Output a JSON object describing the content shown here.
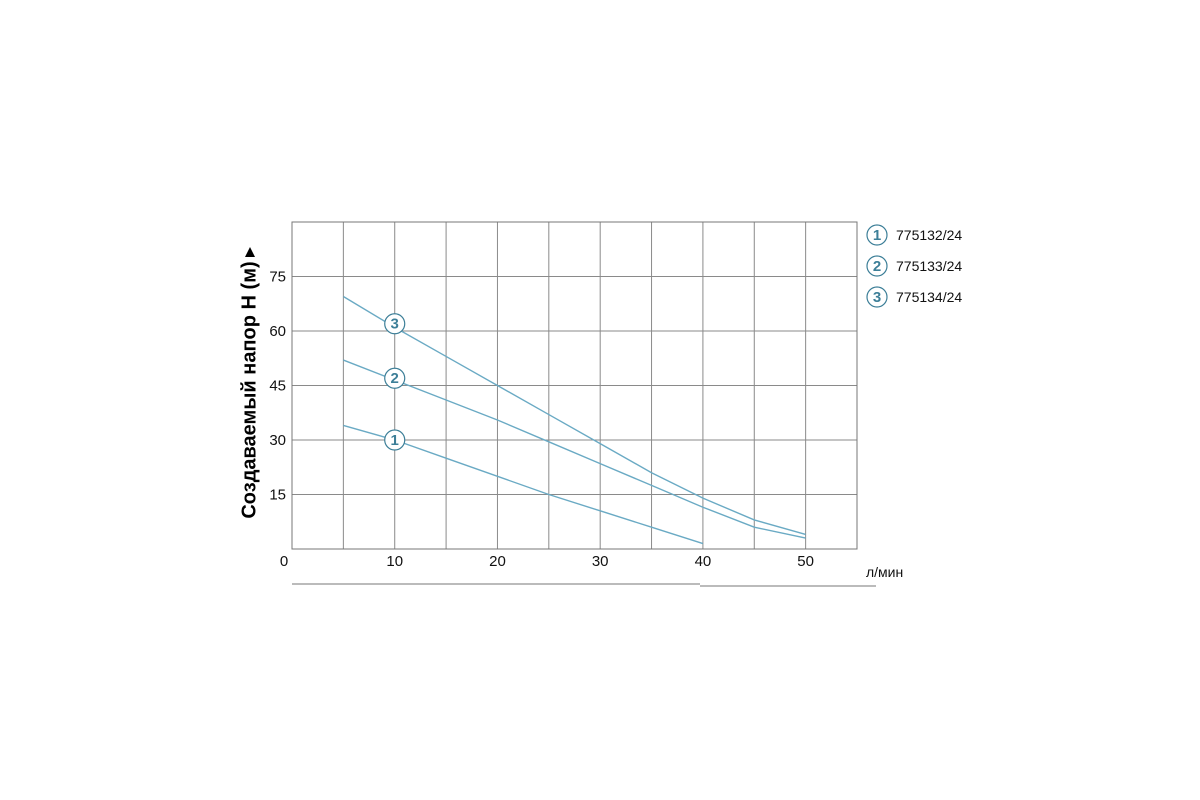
{
  "chart_data": {
    "type": "line",
    "ylabel": "Создаваемый напор H (м)",
    "xunit": "л/мин",
    "xlim": [
      0,
      55
    ],
    "ylim": [
      0,
      90
    ],
    "x_ticks": [
      "0",
      "10",
      "20",
      "30",
      "40",
      "50"
    ],
    "y_ticks": [
      "15",
      "30",
      "45",
      "60",
      "75"
    ],
    "grid": true,
    "legend_position": "right",
    "line_color": "#6aaac4",
    "marker_color": "#3d7f98",
    "series": [
      {
        "name": "775132/24",
        "marker": "1",
        "marker_at": [
          10,
          30
        ],
        "x": [
          5,
          10,
          15,
          20,
          25,
          30,
          35,
          40
        ],
        "y": [
          34,
          30,
          25,
          20,
          15,
          10.5,
          6,
          1.5
        ]
      },
      {
        "name": "775133/24",
        "marker": "2",
        "marker_at": [
          10,
          47
        ],
        "x": [
          5,
          10,
          15,
          20,
          25,
          30,
          35,
          40,
          45,
          50
        ],
        "y": [
          52,
          46.5,
          41,
          35.5,
          29.5,
          23.5,
          17.5,
          11.5,
          6,
          3
        ]
      },
      {
        "name": "775134/24",
        "marker": "3",
        "marker_at": [
          10,
          62
        ],
        "x": [
          5,
          10,
          15,
          20,
          25,
          30,
          35,
          40,
          45,
          50
        ],
        "y": [
          69.5,
          61,
          53,
          45,
          37,
          29,
          21,
          14,
          8,
          4
        ]
      }
    ]
  }
}
